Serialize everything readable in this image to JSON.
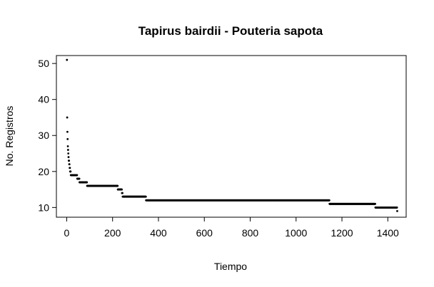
{
  "chart_data": {
    "type": "scatter",
    "title": "Tapirus bairdii - Pouteria sapota",
    "xlabel": "Tiempo",
    "ylabel": "No. Registros",
    "xlim": [
      -45,
      1480
    ],
    "ylim": [
      7.3,
      52.2
    ],
    "x_ticks": [
      0,
      200,
      400,
      600,
      800,
      1000,
      1200,
      1400
    ],
    "y_ticks": [
      10,
      20,
      30,
      40,
      50
    ],
    "grid": false,
    "legend": "none",
    "point_color": "#000000",
    "segments": [
      {
        "x_start": 1,
        "x_end": 1,
        "y": 51
      },
      {
        "x_start": 2,
        "x_end": 2,
        "y": 35
      },
      {
        "x_start": 3,
        "x_end": 3,
        "y": 31
      },
      {
        "x_start": 4,
        "x_end": 4,
        "y": 29
      },
      {
        "x_start": 5,
        "x_end": 5,
        "y": 27
      },
      {
        "x_start": 6,
        "x_end": 6,
        "y": 26
      },
      {
        "x_start": 7,
        "x_end": 7,
        "y": 25
      },
      {
        "x_start": 8,
        "x_end": 8,
        "y": 24
      },
      {
        "x_start": 9,
        "x_end": 10,
        "y": 23
      },
      {
        "x_start": 11,
        "x_end": 12,
        "y": 22
      },
      {
        "x_start": 13,
        "x_end": 14,
        "y": 21
      },
      {
        "x_start": 15,
        "x_end": 17,
        "y": 20
      },
      {
        "x_start": 18,
        "x_end": 45,
        "y": 19
      },
      {
        "x_start": 46,
        "x_end": 55,
        "y": 18
      },
      {
        "x_start": 56,
        "x_end": 88,
        "y": 17
      },
      {
        "x_start": 89,
        "x_end": 222,
        "y": 16
      },
      {
        "x_start": 223,
        "x_end": 240,
        "y": 15
      },
      {
        "x_start": 241,
        "x_end": 243,
        "y": 14
      },
      {
        "x_start": 244,
        "x_end": 345,
        "y": 13
      },
      {
        "x_start": 346,
        "x_end": 1145,
        "y": 12
      },
      {
        "x_start": 1146,
        "x_end": 1345,
        "y": 11
      },
      {
        "x_start": 1346,
        "x_end": 1440,
        "y": 10
      },
      {
        "x_start": 1441,
        "x_end": 1441,
        "y": 9
      }
    ]
  }
}
